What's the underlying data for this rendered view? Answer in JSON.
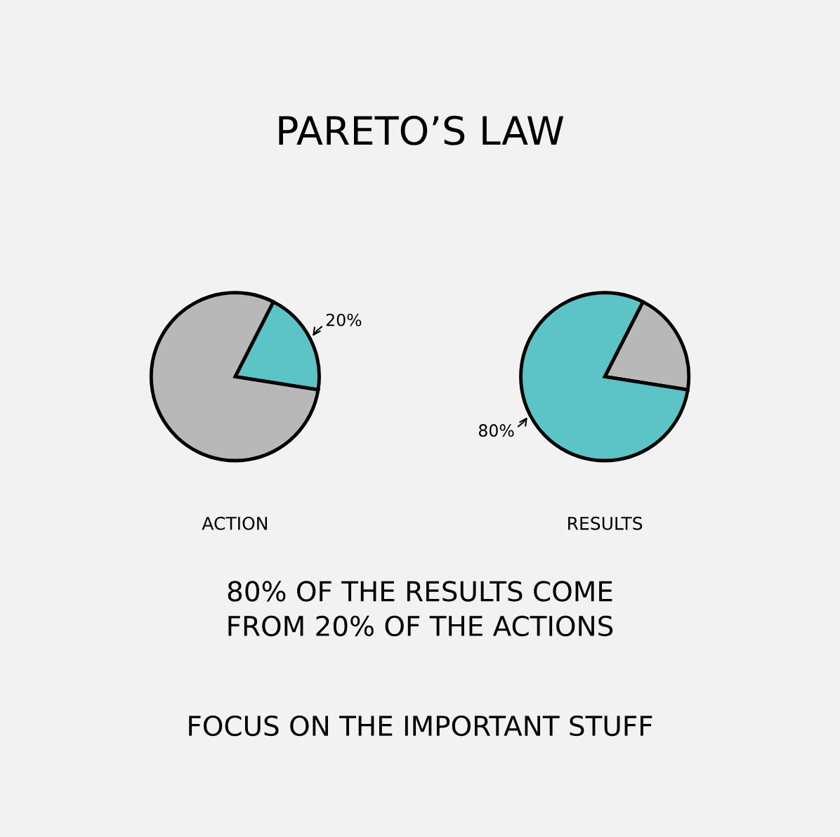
{
  "chart_data": [
    {
      "type": "pie",
      "title": "PARETO’S LAW",
      "xlabel": "ACTION",
      "categories": [
        null,
        null
      ],
      "values": [
        20,
        80
      ],
      "colors": [
        "#5cc3c6",
        "#b8b8b8"
      ],
      "value_labels": [
        "20%",
        null
      ]
    },
    {
      "type": "pie",
      "xlabel": "RESULTS",
      "categories": [
        null,
        null
      ],
      "values": [
        20,
        80
      ],
      "colors": [
        "#b8b8b8",
        "#5cc3c6"
      ],
      "value_labels": [
        null,
        "80%"
      ],
      "annotations": [
        "80% OF THE RESULTS COME\nFROM 20% OF THE ACTIONS",
        "FOCUS ON THE IMPORTANT STUFF"
      ]
    }
  ]
}
